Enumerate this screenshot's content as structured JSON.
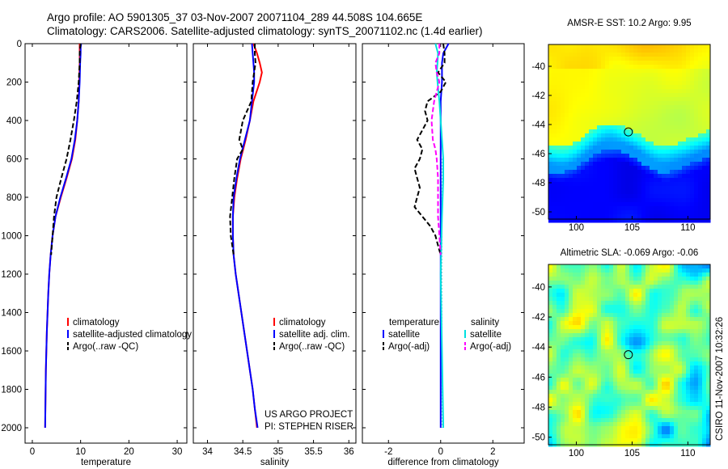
{
  "header": {
    "line1": "Argo profile: AO 5901305_37 03-Nov-2007 20071104_289 44.508S 104.665E",
    "line2": "Climatology: CARS2006. Satellite-adjusted climatology: synTS_20071102.nc (1.4d earlier)"
  },
  "side_label": "CSIRO 11-Nov-2007 10:32:26",
  "project_note": [
    "US ARGO PROJECT",
    "PI: STEPHEN RISER"
  ],
  "colors": {
    "climatology": "#ff0000",
    "satellite": "#0000ff",
    "argo": "#000000",
    "salinity_sat": "#00e0e0",
    "salinity_argo": "#ff00ff"
  },
  "chart_data": [
    {
      "type": "line",
      "id": "temperature",
      "xlabel": "temperature",
      "xlim": [
        -1.5,
        32
      ],
      "ylim": [
        0,
        2080
      ],
      "xticks": [
        0,
        10,
        20,
        30
      ],
      "xtick_labels": [
        "0",
        "10",
        "20",
        "30"
      ],
      "yticks": [
        0,
        200,
        400,
        600,
        800,
        1000,
        1200,
        1400,
        1600,
        1800,
        2000
      ],
      "ytick_labels": [
        "0",
        "200",
        "400",
        "600",
        "800",
        "1000",
        "1200",
        "1400",
        "1600",
        "1800",
        "2000"
      ],
      "series": [
        {
          "name": "climatology",
          "color": "#ff0000",
          "dash": "solid",
          "depth": [
            0,
            20,
            50,
            100,
            200,
            300,
            400,
            500,
            600,
            700,
            800,
            900,
            1000,
            1100,
            1200,
            1300,
            1400,
            1500,
            1600,
            1700,
            1800,
            1900,
            2000
          ],
          "x": [
            9.8,
            9.8,
            9.8,
            9.8,
            9.7,
            9.6,
            9.3,
            8.9,
            8.2,
            7.1,
            5.9,
            4.8,
            4.2,
            3.8,
            3.5,
            3.3,
            3.15,
            3.0,
            2.9,
            2.8,
            2.75,
            2.7,
            2.65
          ]
        },
        {
          "name": "satellite-adjusted climatology",
          "color": "#0000ff",
          "dash": "solid",
          "depth": [
            0,
            20,
            50,
            100,
            200,
            300,
            400,
            500,
            600,
            700,
            800,
            900,
            1000,
            1100,
            1200,
            1300,
            1400,
            1500,
            1600,
            1700,
            1800,
            1900,
            2000
          ],
          "x": [
            10.1,
            10.0,
            10.0,
            9.9,
            9.8,
            9.6,
            9.3,
            8.8,
            8.1,
            7.0,
            5.8,
            4.8,
            4.2,
            3.8,
            3.5,
            3.3,
            3.15,
            3.0,
            2.9,
            2.8,
            2.75,
            2.7,
            2.65
          ]
        },
        {
          "name": "Argo(..raw -QC)",
          "color": "#000000",
          "dash": "dash",
          "depth": [
            0,
            20,
            50,
            100,
            200,
            300,
            400,
            500,
            600,
            700,
            800,
            900,
            1000,
            1100
          ],
          "x": [
            10.0,
            9.9,
            9.8,
            9.8,
            9.6,
            9.2,
            8.6,
            7.9,
            7.1,
            6.0,
            5.0,
            4.5,
            4.2,
            3.9
          ]
        }
      ],
      "legend": [
        "climatology",
        "satellite-adjusted climatology",
        "Argo(..raw -QC)"
      ]
    },
    {
      "type": "line",
      "id": "salinity",
      "xlabel": "salinity",
      "xlim": [
        33.8,
        36.1
      ],
      "ylim": [
        0,
        2080
      ],
      "xticks": [
        34,
        34.5,
        35,
        35.5,
        36
      ],
      "xtick_labels": [
        "34",
        "34.5",
        "35",
        "35.5",
        "36"
      ],
      "series": [
        {
          "name": "climatology",
          "color": "#ff0000",
          "dash": "solid",
          "depth": [
            0,
            50,
            100,
            150,
            200,
            300,
            400,
            500,
            600,
            700,
            800,
            900,
            1000,
            1100,
            1200,
            1300,
            1400,
            1500,
            1600,
            1700,
            1800,
            1900,
            2000
          ],
          "x": [
            34.65,
            34.7,
            34.74,
            34.77,
            34.74,
            34.65,
            34.6,
            34.54,
            34.47,
            34.42,
            34.38,
            34.36,
            34.36,
            34.37,
            34.4,
            34.44,
            34.48,
            34.52,
            34.56,
            34.6,
            34.64,
            34.67,
            34.7
          ]
        },
        {
          "name": "satellite adj. clim.",
          "color": "#0000ff",
          "dash": "solid",
          "depth": [
            0,
            50,
            100,
            150,
            200,
            300,
            400,
            500,
            600,
            700,
            800,
            900,
            1000,
            1100,
            1200,
            1300,
            1400,
            1500,
            1600,
            1700,
            1800,
            1900,
            2000
          ],
          "x": [
            34.63,
            34.64,
            34.65,
            34.66,
            34.66,
            34.63,
            34.6,
            34.53,
            34.46,
            34.41,
            34.37,
            34.36,
            34.36,
            34.37,
            34.4,
            34.44,
            34.48,
            34.52,
            34.56,
            34.6,
            34.64,
            34.67,
            34.71
          ]
        },
        {
          "name": "Argo(..raw -QC)",
          "color": "#000000",
          "dash": "dash",
          "depth": [
            0,
            50,
            100,
            200,
            300,
            400,
            500,
            550,
            600,
            700,
            800,
            900,
            1000,
            1050,
            1100
          ],
          "x": [
            34.67,
            34.67,
            34.68,
            34.64,
            34.62,
            34.5,
            34.45,
            34.5,
            34.42,
            34.38,
            34.35,
            34.32,
            34.33,
            34.35,
            34.37
          ]
        }
      ],
      "legend": [
        "climatology",
        "satellite adj. clim.",
        "Argo(..raw -QC)"
      ]
    },
    {
      "type": "line",
      "id": "difference",
      "xlabel": "difference from climatology",
      "xlim": [
        -3,
        3.2
      ],
      "ylim": [
        0,
        2080
      ],
      "xticks": [
        -2,
        0,
        2
      ],
      "xtick_labels": [
        "-2",
        "0",
        "2"
      ],
      "series": [
        {
          "name": "temperature satellite",
          "color": "#0000ff",
          "dash": "solid",
          "depth": [
            0,
            50,
            100,
            200,
            300,
            500,
            700,
            900,
            1100,
            1400,
            1700,
            2000
          ],
          "x": [
            0.3,
            0.1,
            0.05,
            0.05,
            0.0,
            0.0,
            0.0,
            0.0,
            0.0,
            0.0,
            0.0,
            0.0
          ]
        },
        {
          "name": "temperature Argo(-adj)",
          "color": "#000000",
          "dash": "dash",
          "depth": [
            0,
            50,
            100,
            150,
            200,
            250,
            300,
            350,
            400,
            450,
            500,
            550,
            600,
            650,
            700,
            750,
            800,
            850,
            900,
            950,
            1000,
            1050,
            1100
          ],
          "x": [
            0.1,
            0.15,
            0.15,
            -0.1,
            0.2,
            0.0,
            -0.5,
            -0.6,
            -0.5,
            -0.7,
            -0.9,
            -0.7,
            -0.8,
            -1.0,
            -0.9,
            -0.8,
            -0.9,
            -1.0,
            -0.7,
            -0.4,
            -0.2,
            -0.1,
            0.0
          ]
        },
        {
          "name": "salinity satellite",
          "color": "#00e0e0",
          "dash": "solid",
          "depth": [
            0,
            50,
            100,
            150,
            200,
            300,
            400,
            500,
            600,
            700,
            900,
            1200,
            1600,
            2000
          ],
          "x": [
            -0.2,
            -0.1,
            -0.12,
            -0.15,
            -0.12,
            -0.05,
            0.0,
            0.05,
            0.1,
            0.1,
            0.05,
            0.0,
            0.05,
            0.1
          ]
        },
        {
          "name": "salinity Argo(-adj)",
          "color": "#ff00ff",
          "dash": "dash",
          "depth": [
            0,
            50,
            100,
            150,
            200,
            300,
            400,
            500,
            550,
            600,
            700,
            800,
            900,
            1000,
            1100
          ],
          "x": [
            -0.05,
            -0.05,
            -0.2,
            -0.15,
            -0.05,
            -0.25,
            -0.35,
            -0.3,
            -0.2,
            -0.15,
            -0.1,
            -0.1,
            -0.1,
            -0.05,
            0.0
          ]
        }
      ],
      "legend_titles": [
        "temperature",
        "salinity"
      ],
      "legend": [
        "satellite",
        "Argo(-adj)",
        "satellite",
        "Argo(-adj)"
      ]
    },
    {
      "type": "heatmap",
      "id": "sst_map",
      "title": "AMSR-E SST: 10.2 Argo: 9.95",
      "xticks": [
        100,
        105,
        110
      ],
      "yticks": [
        -40,
        -42,
        -44,
        -46,
        -48,
        -50
      ],
      "xlim": [
        97.5,
        112
      ],
      "ylim": [
        -50.5,
        -38.5
      ],
      "marker": {
        "lon": 104.665,
        "lat": -44.508
      }
    },
    {
      "type": "heatmap",
      "id": "sla_map",
      "title": "Altimetric SLA: -0.069 Argo: -0.06",
      "xticks": [
        100,
        105,
        110
      ],
      "yticks": [
        -40,
        -42,
        -44,
        -46,
        -48,
        -50
      ],
      "xlim": [
        97.5,
        112
      ],
      "ylim": [
        -50.5,
        -38.5
      ],
      "marker": {
        "lon": 104.665,
        "lat": -44.508
      }
    }
  ]
}
